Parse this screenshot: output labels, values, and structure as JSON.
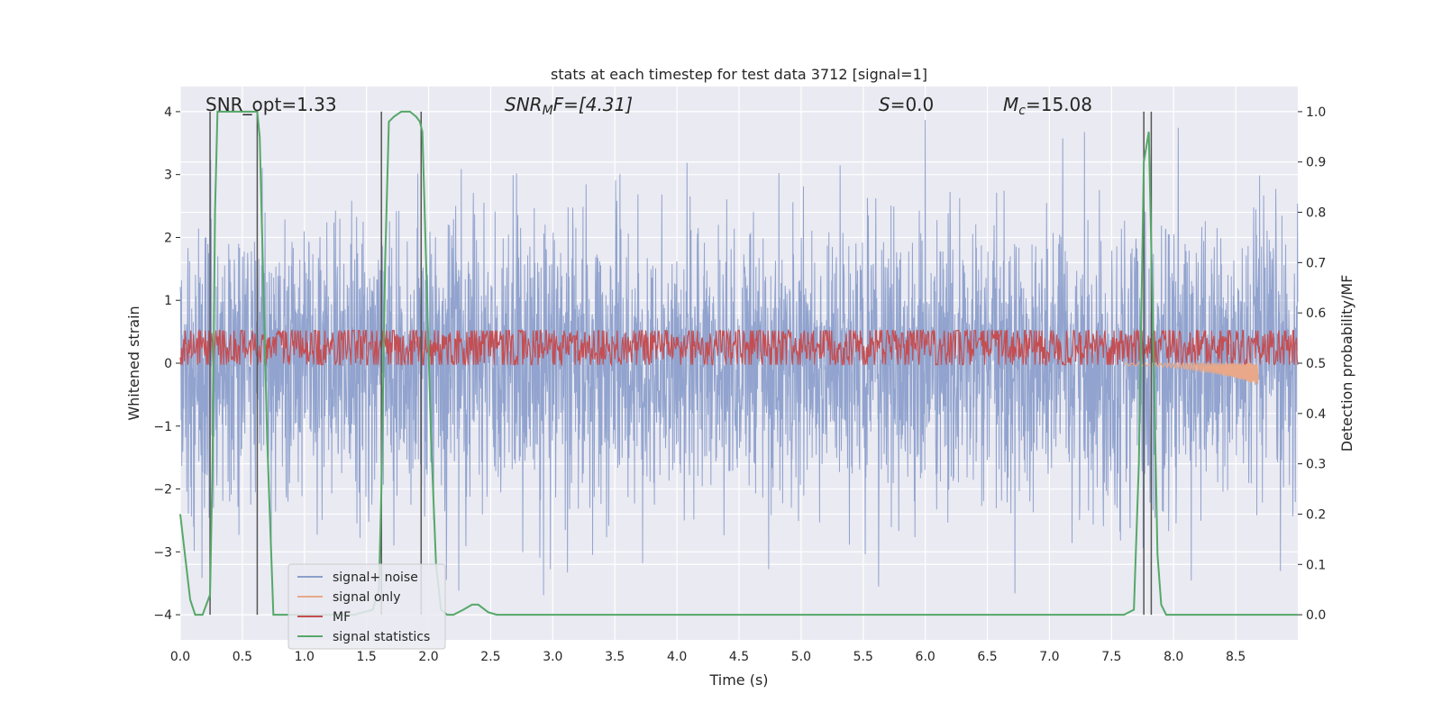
{
  "chart_data": {
    "type": "line",
    "title": "stats at each timestep for test data 3712 [signal=1]",
    "xlabel": "Time (s)",
    "ylabel_left": "Whitened strain",
    "ylabel_right": "Detection probability/MF",
    "xlim": [
      0.0,
      9.0
    ],
    "ylim_left": [
      -4.4,
      4.4
    ],
    "ylim_right": [
      -0.05,
      1.05
    ],
    "xticks": [
      "0.0",
      "0.5",
      "1.0",
      "1.5",
      "2.0",
      "2.5",
      "3.0",
      "3.5",
      "4.0",
      "4.5",
      "5.0",
      "5.5",
      "6.0",
      "6.5",
      "7.0",
      "7.5",
      "8.0",
      "8.5"
    ],
    "yticks_left": [
      "−4",
      "−3",
      "−2",
      "−1",
      "0",
      "1",
      "2",
      "3",
      "4"
    ],
    "yticks_right": [
      "0.0",
      "0.1",
      "0.2",
      "0.3",
      "0.4",
      "0.5",
      "0.6",
      "0.7",
      "0.8",
      "0.9",
      "1.0"
    ],
    "annotations": {
      "snr_opt": "SNR_opt=1.33",
      "snr_mf_main": "SNR",
      "snr_mf_sub": "M",
      "snr_mf_rest": "F=[4.31]",
      "s_main": "S",
      "s_rest": "=0.0",
      "mc_main": "M",
      "mc_sub": "c",
      "mc_rest": "=15.08"
    },
    "legend": {
      "position": "lower-left",
      "entries": [
        {
          "label": "signal+ noise",
          "color": "#8c9fcb"
        },
        {
          "label": "signal only",
          "color": "#e8a889"
        },
        {
          "label": "MF",
          "color": "#c44e52"
        },
        {
          "label": "signal statistics",
          "color": "#55a868"
        }
      ]
    },
    "series": [
      {
        "name": "signal+ noise",
        "kind": "noise",
        "axis": "left",
        "color": "#8c9fcb",
        "sigma": 1.1,
        "samples": 3600,
        "range_typical": [
          -3.5,
          4.0
        ]
      },
      {
        "name": "signal only",
        "kind": "chirp",
        "axis": "left",
        "color": "#e8a889",
        "x_start": 7.6,
        "x_end": 8.68,
        "min_value": -0.3
      },
      {
        "name": "MF",
        "kind": "mf",
        "axis": "right",
        "color": "#c44e52",
        "mean": 0.535,
        "spread": 0.03,
        "max_peak": 0.565
      },
      {
        "name": "signal statistics",
        "kind": "line",
        "axis": "right",
        "color": "#55a868",
        "x": [
          0.0,
          0.08,
          0.12,
          0.18,
          0.24,
          0.26,
          0.28,
          0.3,
          0.32,
          0.4,
          0.5,
          0.55,
          0.58,
          0.62,
          0.64,
          0.66,
          0.7,
          0.75,
          0.8,
          0.9,
          1.0,
          1.2,
          1.4,
          1.55,
          1.6,
          1.62,
          1.65,
          1.68,
          1.72,
          1.78,
          1.85,
          1.9,
          1.93,
          1.95,
          1.98,
          2.02,
          2.06,
          2.1,
          2.15,
          2.2,
          2.28,
          2.35,
          2.4,
          2.48,
          2.55,
          2.65,
          2.8,
          3.0,
          4.0,
          5.0,
          6.0,
          7.0,
          7.6,
          7.68,
          7.72,
          7.76,
          7.8,
          7.84,
          7.87,
          7.9,
          7.94,
          8.0,
          8.5,
          9.0
        ],
        "values": [
          0.2,
          0.03,
          0.0,
          0.0,
          0.04,
          0.3,
          0.8,
          1.0,
          1.0,
          1.0,
          1.0,
          1.0,
          1.0,
          1.0,
          0.95,
          0.75,
          0.35,
          0.0,
          0.0,
          0.0,
          0.0,
          0.0,
          0.0,
          0.01,
          0.05,
          0.25,
          0.7,
          0.98,
          0.99,
          1.0,
          1.0,
          0.99,
          0.98,
          0.96,
          0.7,
          0.35,
          0.1,
          0.01,
          0.0,
          0.0,
          0.01,
          0.02,
          0.02,
          0.005,
          0.0,
          0.0,
          0.0,
          0.0,
          0.0,
          0.0,
          0.0,
          0.0,
          0.0,
          0.01,
          0.3,
          0.9,
          0.96,
          0.5,
          0.12,
          0.02,
          0.0,
          0.0,
          0.0,
          0.0
        ]
      }
    ],
    "vertical_markers": [
      0.24,
      0.62,
      1.62,
      1.94,
      7.76,
      7.82
    ]
  }
}
